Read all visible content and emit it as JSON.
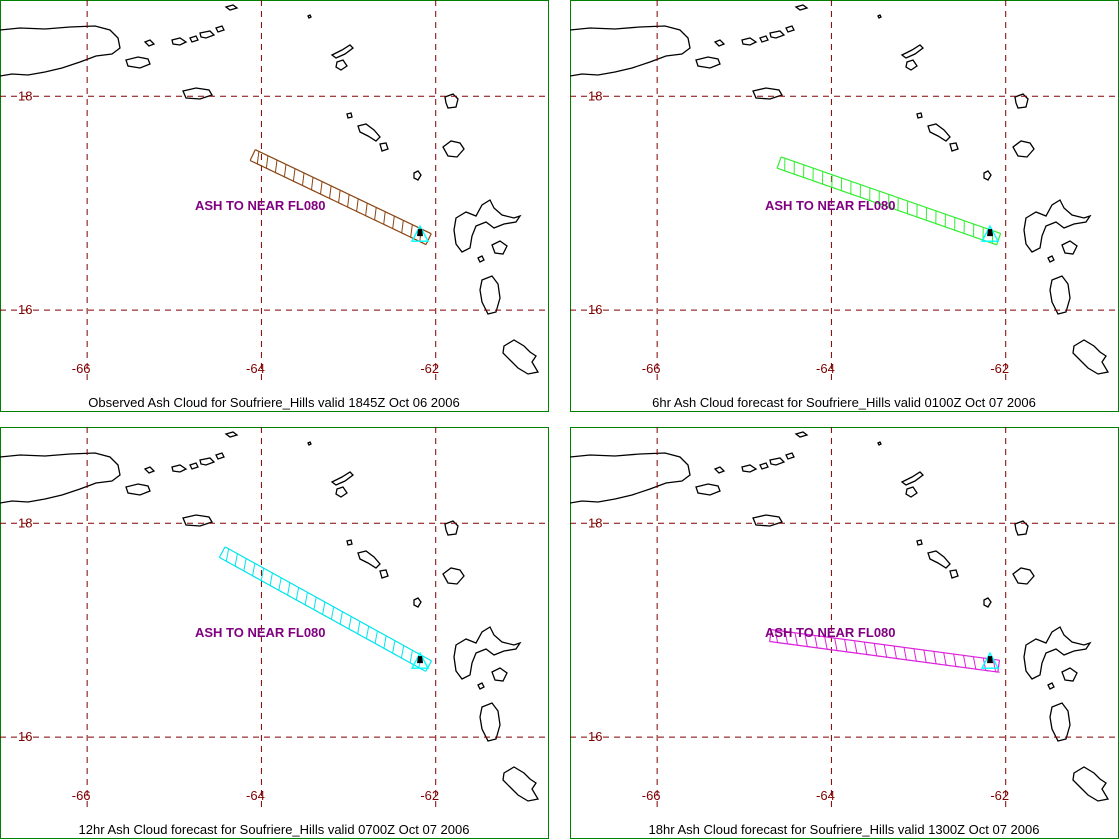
{
  "colors": {
    "frame": "#008000",
    "coast": "#000000",
    "grid": "#800000",
    "grid_label": "#800000",
    "ash_label": "#800080",
    "volcano": "#00ffff",
    "caption": "#000000"
  },
  "map": {
    "lon_range": [
      -67.0,
      -60.7
    ],
    "lat_range": [
      15.3,
      18.9
    ],
    "grid_lons": [
      -66,
      -64,
      -62
    ],
    "grid_lats": [
      18,
      16
    ],
    "grid_lon_labels": [
      "-66",
      "-64",
      "-62"
    ],
    "grid_lat_labels": [
      "18",
      "16"
    ],
    "volcano": {
      "name": "Soufriere_Hills",
      "lon": -62.18,
      "lat": 16.72
    }
  },
  "panels": [
    {
      "caption": "Observed Ash Cloud for Soufriere_Hills valid 1845Z Oct 06 2006",
      "ash_label": "ASH TO NEAR FL080",
      "ash_color": "#8b4513",
      "ash_start": {
        "lon": -64.1,
        "lat": 17.45
      },
      "ash_end": {
        "lon": -62.15,
        "lat": 16.72
      }
    },
    {
      "caption": "6hr Ash Cloud forecast for Soufriere_Hills valid 0100Z Oct 07 2006",
      "ash_label": "ASH TO NEAR FL080",
      "ash_color": "#33ee33",
      "ash_start": {
        "lon": -64.6,
        "lat": 17.38
      },
      "ash_end": {
        "lon": -62.15,
        "lat": 16.72
      }
    },
    {
      "caption": "12hr Ash Cloud forecast for Soufriere_Hills valid 0700Z Oct 07 2006",
      "ash_label": "ASH TO NEAR FL080",
      "ash_color": "#00e5ee",
      "ash_start": {
        "lon": -64.45,
        "lat": 17.73
      },
      "ash_end": {
        "lon": -62.15,
        "lat": 16.72
      }
    },
    {
      "caption": "18hr Ash Cloud forecast for Soufriere_Hills valid 1300Z Oct 07 2006",
      "ash_label": "ASH TO NEAR FL080",
      "ash_color": "#dd22dd",
      "ash_start": {
        "lon": -64.7,
        "lat": 16.95
      },
      "ash_end": {
        "lon": -62.15,
        "lat": 16.72
      }
    }
  ]
}
